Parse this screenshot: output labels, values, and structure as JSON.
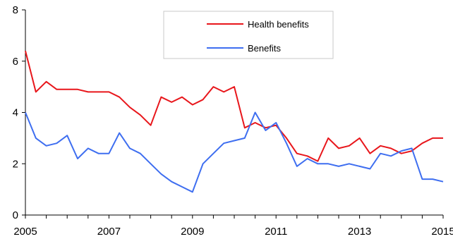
{
  "chart_data": {
    "type": "line",
    "title": "",
    "xlabel": "",
    "ylabel": "",
    "xlim": [
      2005,
      2015
    ],
    "ylim": [
      0,
      8
    ],
    "grid": false,
    "legend_position": "top-center",
    "x_ticks": [
      "2005",
      "2007",
      "2009",
      "2011",
      "2013",
      "2015"
    ],
    "y_ticks": [
      "0",
      "2",
      "4",
      "6",
      "8"
    ],
    "series": [
      {
        "name": "Health benefits",
        "color": "#e8161b",
        "x": [
          2005,
          2005.25,
          2005.5,
          2005.75,
          2006,
          2006.25,
          2006.5,
          2006.75,
          2007,
          2007.25,
          2007.5,
          2007.75,
          2008,
          2008.25,
          2008.5,
          2008.75,
          2009,
          2009.25,
          2009.5,
          2009.75,
          2010,
          2010.25,
          2010.5,
          2010.75,
          2011,
          2011.25,
          2011.5,
          2011.75,
          2012,
          2012.25,
          2012.5,
          2012.75,
          2013,
          2013.25,
          2013.5,
          2013.75,
          2014,
          2014.25,
          2014.5,
          2014.75,
          2015
        ],
        "values": [
          6.4,
          4.8,
          5.2,
          4.9,
          4.9,
          4.9,
          4.8,
          4.8,
          4.8,
          4.6,
          4.2,
          3.9,
          3.5,
          4.6,
          4.4,
          4.6,
          4.3,
          4.5,
          5.0,
          4.8,
          5.0,
          3.4,
          3.6,
          3.4,
          3.5,
          3.0,
          2.4,
          2.3,
          2.1,
          3.0,
          2.6,
          2.7,
          3.0,
          2.4,
          2.7,
          2.6,
          2.4,
          2.5,
          2.8,
          3.0,
          3.0
        ]
      },
      {
        "name": "Benefits",
        "color": "#3e6ef0",
        "x": [
          2005,
          2005.25,
          2005.5,
          2005.75,
          2006,
          2006.25,
          2006.5,
          2006.75,
          2007,
          2007.25,
          2007.5,
          2007.75,
          2008,
          2008.25,
          2008.5,
          2008.75,
          2009,
          2009.25,
          2009.5,
          2009.75,
          2010,
          2010.25,
          2010.5,
          2010.75,
          2011,
          2011.25,
          2011.5,
          2011.75,
          2012,
          2012.25,
          2012.5,
          2012.75,
          2013,
          2013.25,
          2013.5,
          2013.75,
          2014,
          2014.25,
          2014.5,
          2014.75,
          2015
        ],
        "values": [
          4.0,
          3.0,
          2.7,
          2.8,
          3.1,
          2.2,
          2.6,
          2.4,
          2.4,
          3.2,
          2.6,
          2.4,
          2.0,
          1.6,
          1.3,
          1.1,
          0.9,
          2.0,
          2.4,
          2.8,
          2.9,
          3.0,
          4.0,
          3.3,
          3.6,
          2.8,
          1.9,
          2.2,
          2.0,
          2.0,
          1.9,
          2.0,
          1.9,
          1.8,
          2.4,
          2.3,
          2.5,
          2.6,
          1.4,
          1.4,
          1.3
        ]
      }
    ]
  }
}
